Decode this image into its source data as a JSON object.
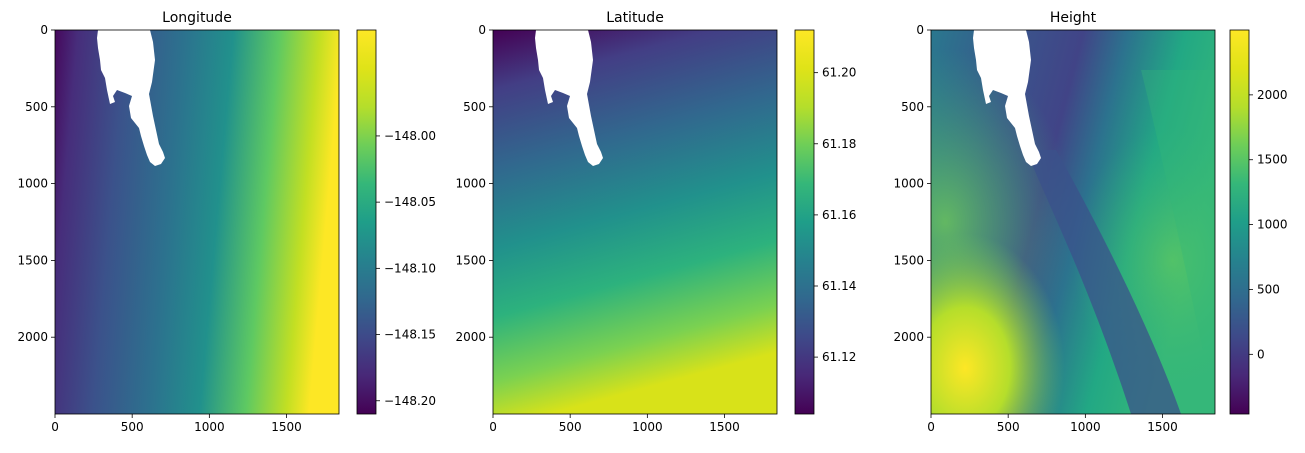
{
  "chart_data": [
    {
      "type": "heatmap",
      "title": "Longitude",
      "xlabel": "",
      "ylabel": "",
      "x_ticks": [
        0,
        500,
        1000,
        1500
      ],
      "y_ticks": [
        0,
        500,
        1000,
        1500,
        2000
      ],
      "xlim": [
        0,
        1840
      ],
      "ylim": [
        2500,
        0
      ],
      "colormap": "viridis",
      "colorbar": {
        "min": -148.21,
        "max": -147.92,
        "ticks": [
          "−148.00",
          "−148.05",
          "−148.10",
          "−148.15",
          "−148.20"
        ],
        "tick_values": [
          -148.0,
          -148.05,
          -148.1,
          -148.15,
          -148.2
        ]
      },
      "gradient_angle_deg": 98,
      "masked_region": "white no-data area near top, x≈280–720, y≈0–880"
    },
    {
      "type": "heatmap",
      "title": "Latitude",
      "xlabel": "",
      "ylabel": "",
      "x_ticks": [
        0,
        500,
        1000,
        1500
      ],
      "y_ticks": [
        0,
        500,
        1000,
        1500,
        2000
      ],
      "xlim": [
        0,
        1840
      ],
      "ylim": [
        2500,
        0
      ],
      "colormap": "viridis",
      "colorbar": {
        "min": 61.104,
        "max": 61.212,
        "ticks": [
          "61.20",
          "61.18",
          "61.16",
          "61.14",
          "61.12"
        ],
        "tick_values": [
          61.2,
          61.18,
          61.16,
          61.14,
          61.12
        ]
      },
      "gradient_angle_deg": 172,
      "masked_region": "white no-data area near top, x≈280–720, y≈0–880"
    },
    {
      "type": "heatmap",
      "title": "Height",
      "xlabel": "",
      "ylabel": "",
      "x_ticks": [
        0,
        500,
        1000,
        1500
      ],
      "y_ticks": [
        0,
        500,
        1000,
        1500,
        2000
      ],
      "xlim": [
        0,
        1840
      ],
      "ylim": [
        2500,
        0
      ],
      "colormap": "viridis",
      "colorbar": {
        "min": -460,
        "max": 2500,
        "ticks": [
          "2000",
          "1500",
          "1000",
          "500",
          "0"
        ],
        "tick_values": [
          2000,
          1500,
          1000,
          500,
          0
        ]
      },
      "masked_region": "white no-data area near top, x≈280–720, y≈0–880"
    }
  ]
}
